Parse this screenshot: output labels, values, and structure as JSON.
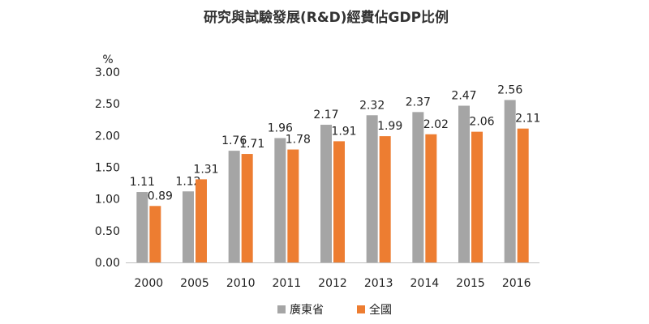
{
  "chart_data": {
    "type": "bar",
    "title": "研究與試驗發展(R&D)經費佔GDP比例",
    "ylabel": "%",
    "xlabel": "",
    "categories": [
      "2000",
      "2005",
      "2010",
      "2011",
      "2012",
      "2013",
      "2014",
      "2015",
      "2016"
    ],
    "series": [
      {
        "name": "廣東省",
        "color": "#A5A5A5",
        "values": [
          1.11,
          1.12,
          1.76,
          1.96,
          2.17,
          2.32,
          2.37,
          2.47,
          2.56
        ],
        "labels": [
          "1.11",
          "1.12",
          "1.76",
          "1.96",
          "2.17",
          "2.32",
          "2.37",
          "2.47",
          "2.56"
        ]
      },
      {
        "name": "全國",
        "color": "#ED7D31",
        "values": [
          0.89,
          1.31,
          1.71,
          1.78,
          1.91,
          1.99,
          2.02,
          2.06,
          2.11
        ],
        "labels": [
          "0.89",
          "1.31",
          "1.71",
          "1.78",
          "1.91",
          "1.99",
          "2.02",
          "2.06",
          "2.11"
        ]
      }
    ],
    "ylim": [
      0,
      3
    ],
    "yticks": [
      "0.00",
      "0.50",
      "1.00",
      "1.50",
      "2.00",
      "2.50",
      "3.00"
    ],
    "grid": false,
    "legend": "bottom-center"
  }
}
